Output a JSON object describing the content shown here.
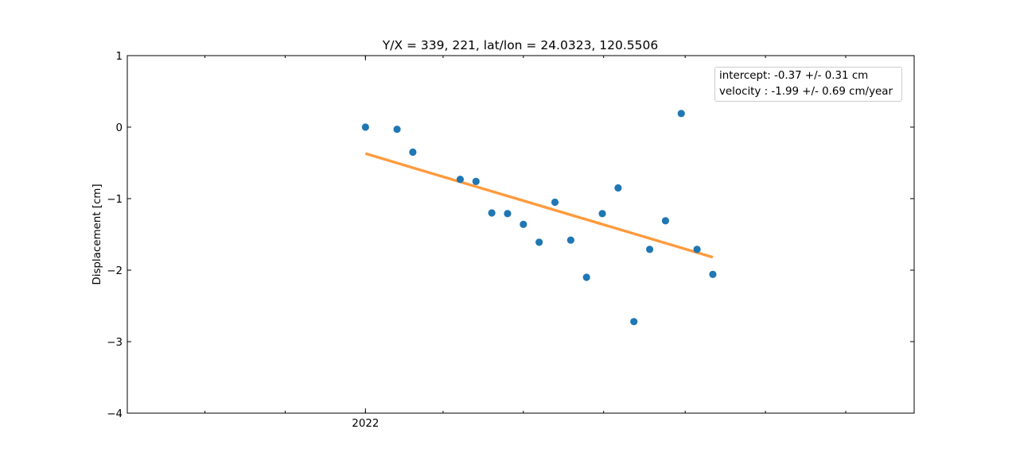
{
  "chart_data": {
    "type": "scatter",
    "title": "Y/X = 339, 221, lat/lon = 24.0323, 120.5506",
    "xlabel": "",
    "ylabel": "Displacement [cm]",
    "ylim": [
      -4,
      1
    ],
    "xlim": [
      "2021-07-04",
      "2023-02-22"
    ],
    "x_tick_labels": [
      {
        "label": "2022",
        "x": "2022-01-01"
      }
    ],
    "y_ticks": [
      1,
      0,
      -1,
      -2,
      -3,
      -4
    ],
    "y_tick_labels": [
      "1",
      "0",
      "−1",
      "−2",
      "−3",
      "−4"
    ],
    "grid": false,
    "colors": {
      "points": "#1f77b4",
      "fit": "#ff9a3c"
    },
    "series": [
      {
        "type": "scatter",
        "points": [
          {
            "x": "2022-01-01",
            "y": 0.0
          },
          {
            "x": "2022-01-25",
            "y": -0.03
          },
          {
            "x": "2022-02-06",
            "y": -0.35
          },
          {
            "x": "2022-03-14",
            "y": -0.73
          },
          {
            "x": "2022-03-26",
            "y": -0.76
          },
          {
            "x": "2022-04-07",
            "y": -1.2
          },
          {
            "x": "2022-04-19",
            "y": -1.21
          },
          {
            "x": "2022-05-01",
            "y": -1.36
          },
          {
            "x": "2022-05-13",
            "y": -1.61
          },
          {
            "x": "2022-05-25",
            "y": -1.05
          },
          {
            "x": "2022-06-06",
            "y": -1.58
          },
          {
            "x": "2022-06-18",
            "y": -2.1
          },
          {
            "x": "2022-06-30",
            "y": -1.21
          },
          {
            "x": "2022-07-12",
            "y": -0.85
          },
          {
            "x": "2022-07-24",
            "y": -2.72
          },
          {
            "x": "2022-08-05",
            "y": -1.71
          },
          {
            "x": "2022-08-17",
            "y": -1.31
          },
          {
            "x": "2022-08-29",
            "y": 0.19
          },
          {
            "x": "2022-09-10",
            "y": -1.71
          },
          {
            "x": "2022-09-22",
            "y": -2.06
          }
        ]
      },
      {
        "type": "line",
        "points": [
          {
            "x": "2022-01-01",
            "y": -0.37
          },
          {
            "x": "2022-09-22",
            "y": -1.82
          }
        ]
      }
    ],
    "legend": {
      "placement": "upper-right",
      "lines": [
        "intercept: -0.37 +/- 0.31 cm",
        "velocity : -1.99 +/- 0.69 cm/year"
      ]
    }
  }
}
